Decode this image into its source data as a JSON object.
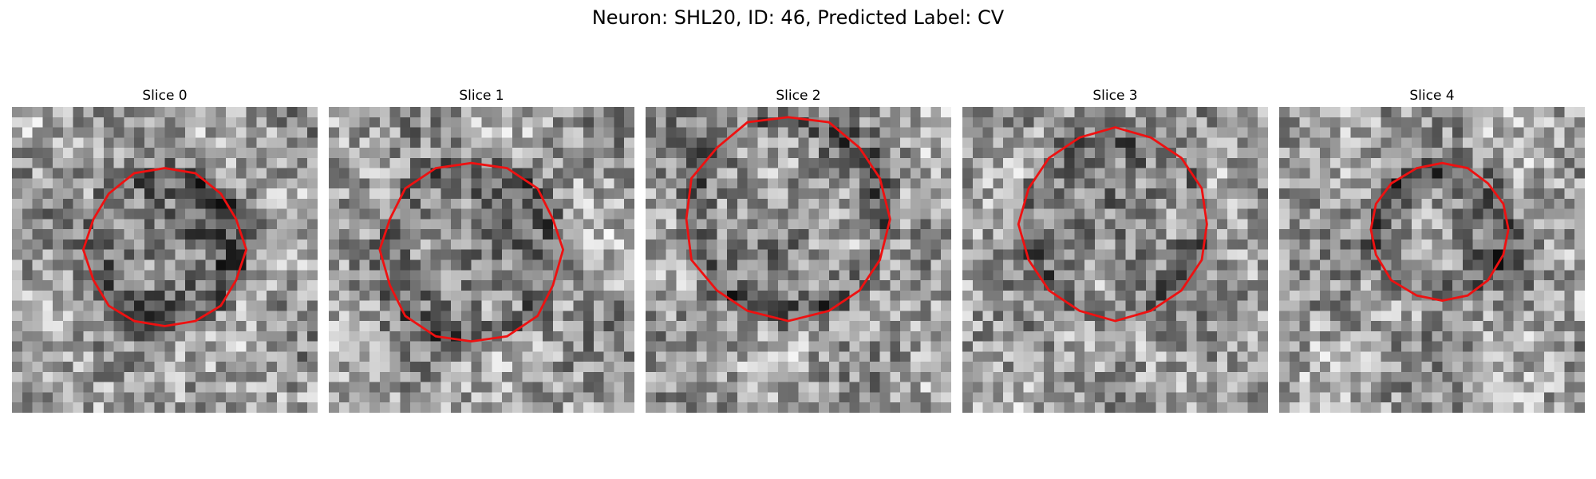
{
  "figure": {
    "suptitle": "Neuron: SHL20, ID: 46, Predicted Label: CV",
    "contour_color": "#ee1111",
    "colormap": "grayscale",
    "panels": [
      {
        "title": "Slice 0"
      },
      {
        "title": "Slice 1"
      },
      {
        "title": "Slice 2"
      },
      {
        "title": "Slice 3"
      },
      {
        "title": "Slice 4"
      }
    ]
  }
}
